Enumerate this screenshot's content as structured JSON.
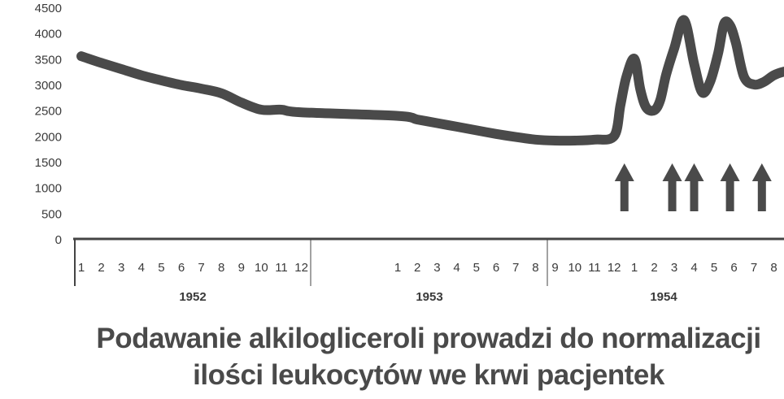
{
  "chart_data": {
    "type": "line",
    "color": "#4a4a4a",
    "y_ticks": [
      "0",
      "500",
      "1000",
      "1500",
      "2000",
      "2500",
      "3000",
      "3500",
      "4000",
      "4500"
    ],
    "ylim": [
      0,
      4500
    ],
    "years": [
      "1952",
      "1953",
      "1954"
    ],
    "month_labels": [
      "1",
      "2",
      "3",
      "4",
      "5",
      "6",
      "7",
      "8",
      "9",
      "10",
      "11",
      "12"
    ],
    "series": [
      {
        "x": [
          0,
          1,
          2,
          3,
          4,
          5,
          6,
          7,
          8,
          9,
          10,
          11,
          12,
          13,
          14,
          15,
          16,
          17,
          18,
          19,
          20,
          21,
          22,
          23,
          23.3,
          23.6,
          24,
          24.3,
          24.6,
          25,
          25.3,
          25.6,
          26,
          26.5,
          27,
          27.4,
          27.8,
          28.2,
          28.5,
          28.8,
          29.1,
          29.5,
          30,
          30.5,
          31,
          31.5,
          32,
          32.5,
          33,
          33.5,
          34,
          34.5,
          35
        ],
        "y": [
          3550,
          3420,
          3300,
          3180,
          3080,
          2990,
          2920,
          2830,
          2650,
          2510,
          2510,
          2460,
          2390,
          2320,
          2250,
          2180,
          2110,
          2040,
          1980,
          1930,
          1910,
          1910,
          1930,
          2000,
          2600,
          3150,
          3500,
          2900,
          2550,
          2500,
          2700,
          3200,
          3700,
          4250,
          3400,
          2850,
          3050,
          3600,
          4180,
          4150,
          3800,
          3150,
          3000,
          3050,
          3180,
          3250,
          3280,
          3280,
          3270,
          3260,
          3260,
          3280,
          3350
        ]
      }
    ],
    "arrows_at_x": [
      23.5,
      25.9,
      27,
      28.8,
      30.4
    ]
  },
  "caption": {
    "line1": "Podawanie alkiloglicerolі prowadzi do normalizacji",
    "line2": "ilości leukocytów we krwi pacjentek"
  }
}
